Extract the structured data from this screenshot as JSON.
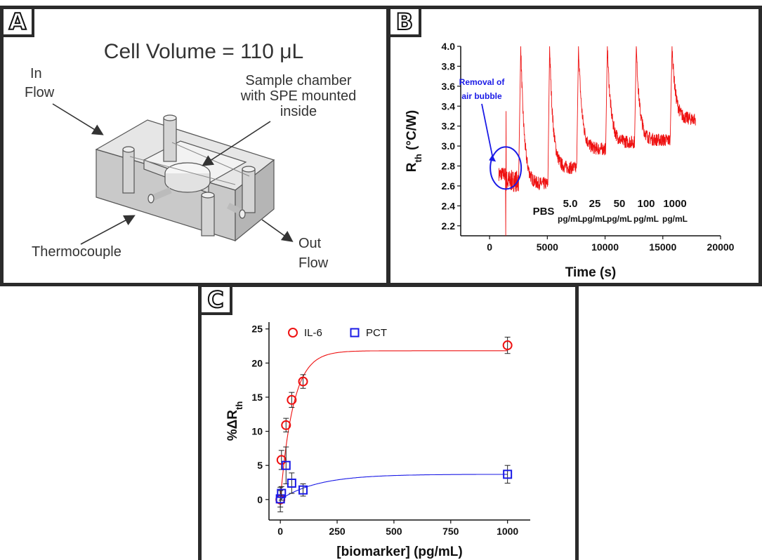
{
  "panels": {
    "a": "A",
    "b": "B",
    "c": "C"
  },
  "panel_a": {
    "title": "Cell Volume = 110 μL",
    "labels": {
      "in_flow": [
        "In",
        "Flow"
      ],
      "sample_chamber": [
        "Sample chamber",
        "with SPE mounted",
        "inside"
      ],
      "thermocouple": "Thermocouple",
      "out_flow": [
        "Out",
        "Flow"
      ]
    }
  },
  "chart_data": [
    {
      "type": "line",
      "xlabel": "Time (s)",
      "ylabel": "R",
      "ylabel_sub": "th",
      "ylabel_unit": " (°C/W)",
      "xlim": [
        -2500,
        20000
      ],
      "ylim": [
        2.1,
        4.0
      ],
      "xticks": [
        0,
        5000,
        10000,
        15000,
        20000
      ],
      "yticks": [
        2.2,
        2.4,
        2.6,
        2.8,
        3.0,
        3.2,
        3.4,
        3.6,
        3.8,
        4.0
      ],
      "color": "#ee1111",
      "annotation": {
        "text": [
          "Removal of",
          "air bubble"
        ],
        "color": "#1a1ae6",
        "x": 1400,
        "y": 2.78
      },
      "segments": [
        {
          "label": [
            "PBS"
          ],
          "start": 2700,
          "end": 5200,
          "plateau": 2.62
        },
        {
          "label": [
            "5.0",
            "pg/mL"
          ],
          "start": 5200,
          "end": 7700,
          "plateau": 2.78
        },
        {
          "label": [
            "25",
            "pg/mL"
          ],
          "start": 7700,
          "end": 10200,
          "plateau": 2.97
        },
        {
          "label": [
            "50",
            "pg/mL"
          ],
          "start": 10200,
          "end": 12700,
          "plateau": 3.04
        },
        {
          "label": [
            "100",
            "pg/mL"
          ],
          "start": 12700,
          "end": 15800,
          "plateau": 3.06
        },
        {
          "label": [
            "1000",
            "pg/mL"
          ],
          "start": 15800,
          "end": 18000,
          "plateau": 3.27
        }
      ]
    },
    {
      "type": "scatter",
      "xlabel": "[biomarker] (pg/mL)",
      "ylabel": "%ΔR",
      "ylabel_sub": "th",
      "xlim": [
        -50,
        1100
      ],
      "ylim": [
        -3,
        26
      ],
      "xticks": [
        0,
        250,
        500,
        750,
        1000
      ],
      "yticks": [
        0,
        5,
        10,
        15,
        20,
        25
      ],
      "legend_position": "top-left",
      "series": [
        {
          "name": "IL-6",
          "marker": "circle",
          "color": "#ee1111",
          "x": [
            0,
            5,
            25,
            50,
            100,
            1000
          ],
          "y": [
            0,
            5.8,
            10.9,
            14.6,
            17.3,
            22.6
          ],
          "err": [
            1.8,
            1.4,
            1.0,
            1.1,
            1.0,
            1.2
          ],
          "fit": {
            "a": 21.8,
            "k": 0.0175
          }
        },
        {
          "name": "PCT",
          "marker": "square",
          "color": "#1a1ae6",
          "x": [
            0,
            5,
            25,
            50,
            100,
            1000
          ],
          "y": [
            0.1,
            0.9,
            5.0,
            2.4,
            1.4,
            3.7
          ],
          "err": [
            1.2,
            1.0,
            2.7,
            1.5,
            0.9,
            1.3
          ],
          "fit": {
            "a": 3.7,
            "k": 0.006
          }
        }
      ]
    }
  ]
}
